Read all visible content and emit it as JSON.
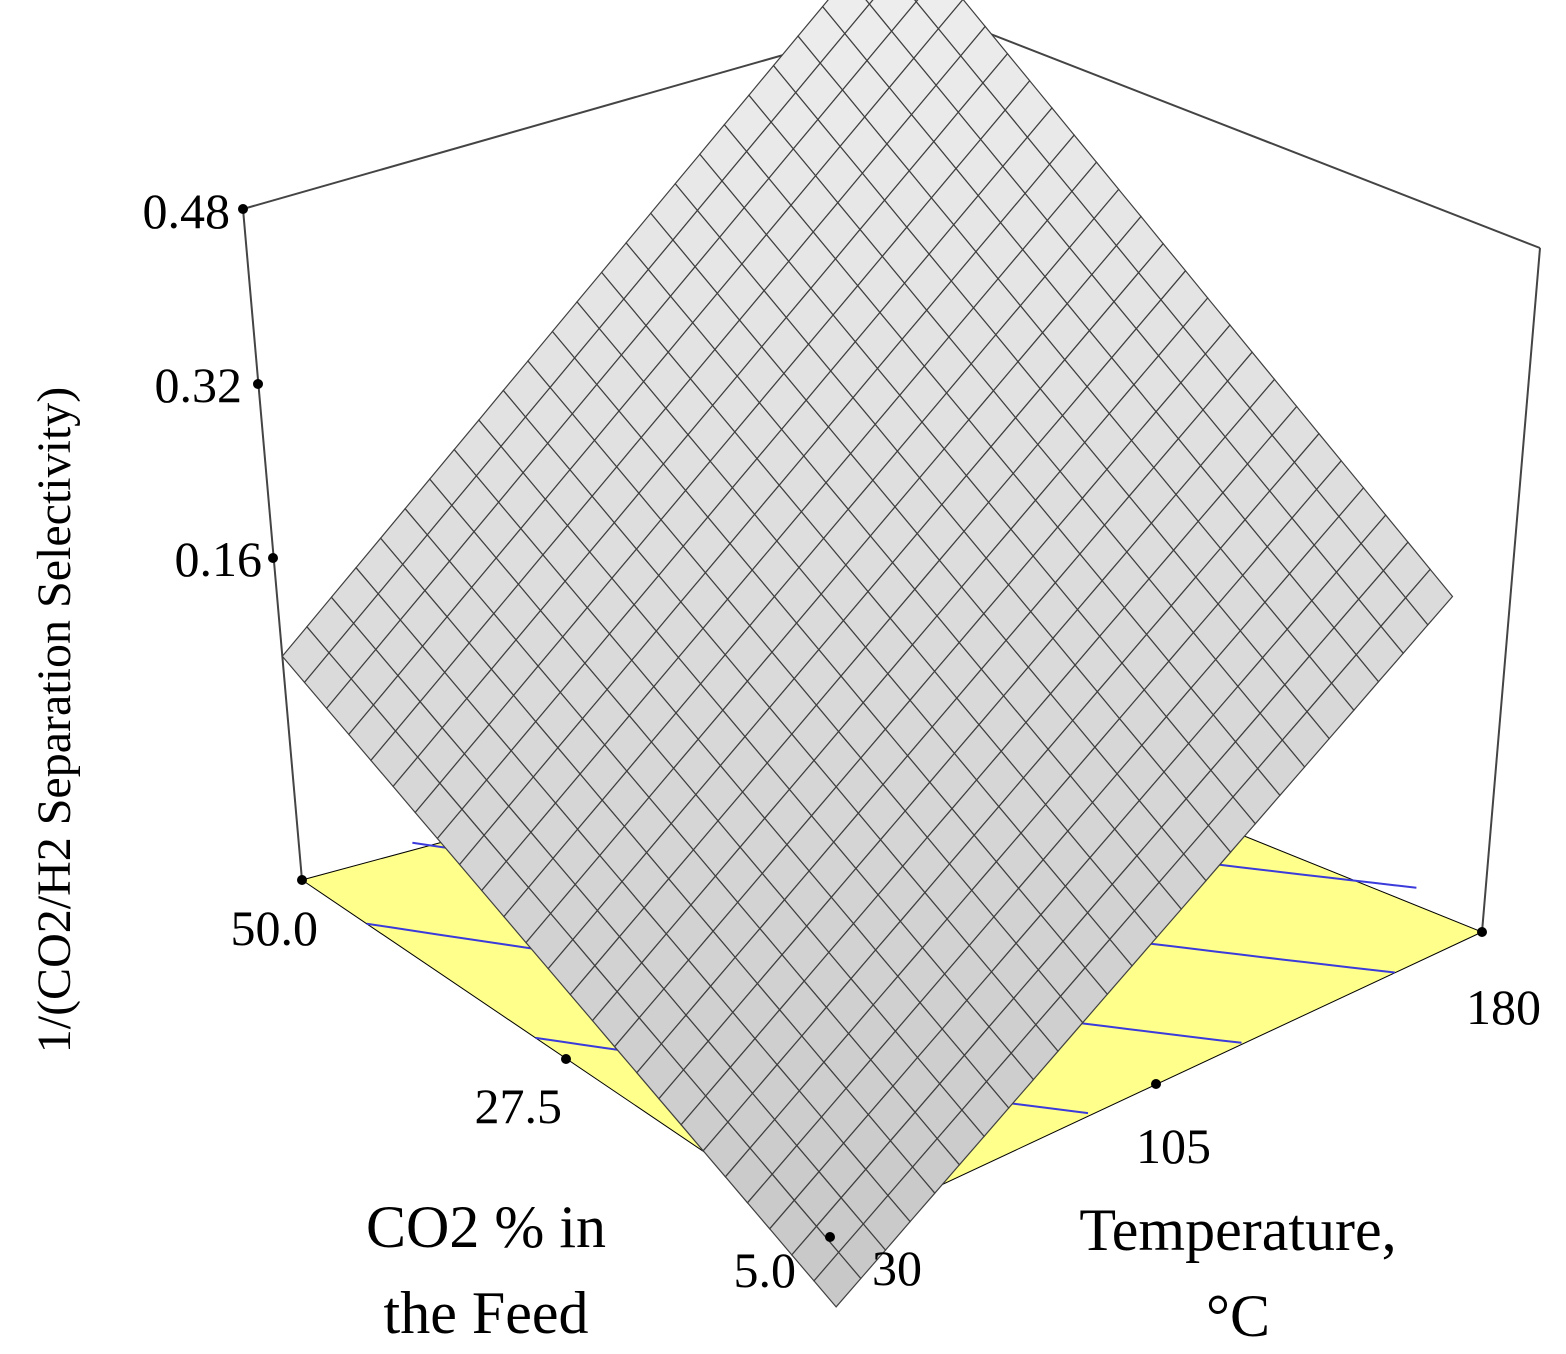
{
  "chart_data": {
    "type": "surface3d",
    "zlabel": "1/(CO2/H2 Separation Selectivity)",
    "xlabel": {
      "line1": "CO2 % in",
      "line2": "the Feed"
    },
    "ylabel": {
      "line1": "Temperature,",
      "line2": "°C"
    },
    "x_ticks": [
      "5.0",
      "27.5",
      "50.0"
    ],
    "y_ticks": [
      "30",
      "105",
      "180"
    ],
    "z_ticks": [
      "0.16",
      "0.32",
      "0.48"
    ],
    "x_range": [
      5.0,
      50.0
    ],
    "y_range": [
      30,
      180
    ],
    "z_range": [
      0.0,
      0.48
    ],
    "corner_values": {
      "x5_t30": 0.03,
      "x50_t30": 0.16,
      "x5_t180": 0.24,
      "x50_t180": 0.47
    },
    "contour_levels": 6,
    "surface_color": "#d8d8d8",
    "contour_plane_color": "#ffff8c",
    "contour_line_color": "#3b3bdc"
  }
}
